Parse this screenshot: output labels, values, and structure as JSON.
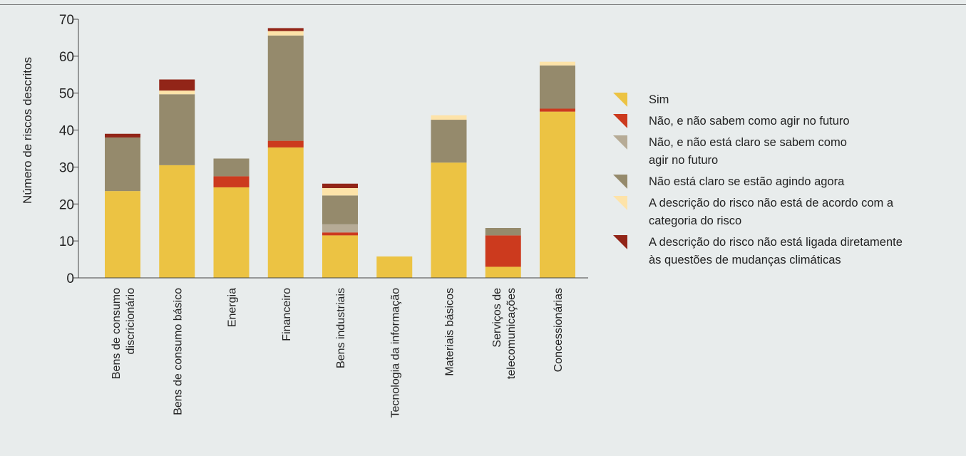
{
  "chart_data": {
    "type": "bar",
    "stacked": true,
    "ylabel": "Número de riscos descritos",
    "xlabel": "",
    "ylim": [
      0,
      70
    ],
    "yticks": [
      0,
      10,
      20,
      30,
      40,
      50,
      60,
      70
    ],
    "grid": false,
    "legend_position": "right",
    "categories": [
      [
        "Bens de consumo",
        "discricionário"
      ],
      [
        "Bens de consumo básico"
      ],
      [
        "Energia"
      ],
      [
        "Financeiro"
      ],
      [
        "Bens industriais"
      ],
      [
        "Tecnologia da informação"
      ],
      [
        "Materiais básicos"
      ],
      [
        "Serviços de",
        "telecomunicações"
      ],
      [
        "Concessionárias"
      ]
    ],
    "series": [
      {
        "name": "Sim",
        "color": "#ecc343",
        "legend_lines": [
          "Sim"
        ],
        "values": [
          23.5,
          30.5,
          24.5,
          35.3,
          11.5,
          5.8,
          31.2,
          3.0,
          45.0
        ]
      },
      {
        "name": "Não, e não sabem como agir no futuro",
        "color": "#cc3a1e",
        "legend_lines": [
          "Não, e não sabem como agir no futuro"
        ],
        "values": [
          0,
          0,
          3.0,
          1.8,
          0.8,
          0,
          0,
          8.5,
          0.8
        ]
      },
      {
        "name": "Não, e não está claro se sabem como agir no futuro",
        "color": "#b6ab96",
        "legend_lines": [
          "Não, e não está claro se sabem como",
          "agir no futuro"
        ],
        "values": [
          0,
          0,
          0,
          0,
          2.2,
          0,
          0,
          0,
          0
        ]
      },
      {
        "name": "Não está claro se estão agindo agora",
        "color": "#958a6c",
        "legend_lines": [
          "Não está claro se estão agindo agora"
        ],
        "values": [
          14.5,
          19.2,
          4.8,
          28.5,
          7.8,
          0,
          11.6,
          2.0,
          11.7
        ]
      },
      {
        "name": "A descrição do risco não está de acordo com a categoria do risco",
        "color": "#fde3a9",
        "legend_lines": [
          "A descrição do risco não está de acordo com a",
          "categoria do risco"
        ],
        "values": [
          0,
          1.0,
          0,
          1.2,
          2.0,
          0,
          1.2,
          0,
          1.0
        ]
      },
      {
        "name": "A descrição do risco não está ligada diretamente às questões de mudanças climáticas",
        "color": "#922518",
        "legend_lines": [
          "A descrição do risco não está ligada diretamente",
          "às questões de mudanças climáticas"
        ],
        "values": [
          1.0,
          3.0,
          0,
          0.8,
          1.2,
          0,
          0,
          0,
          0
        ]
      }
    ]
  }
}
